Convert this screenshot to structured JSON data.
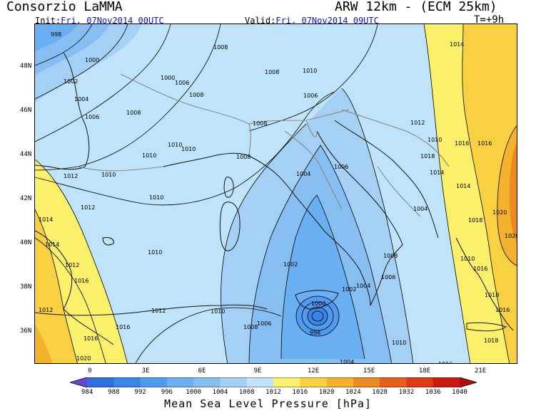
{
  "header": {
    "org": "Consorzio LaMMA",
    "model": "ARW 12km - (ECM 25km)",
    "init_label": "Init:",
    "init_value": "Fri, 07Nov2014 00UTC",
    "valid_label": "Valid:",
    "valid_value": "Fri, 07Nov2014 09UTC",
    "step": "T=+9h"
  },
  "axes": {
    "latitudes": [
      "48N",
      "46N",
      "44N",
      "42N",
      "40N",
      "38N",
      "36N"
    ],
    "longitudes": [
      "0",
      "3E",
      "6E",
      "9E",
      "12E",
      "15E",
      "18E",
      "21E"
    ]
  },
  "legend": {
    "title": "Mean Sea Level Pressure [hPa]",
    "ticks": [
      "984",
      "988",
      "992",
      "996",
      "1000",
      "1004",
      "1008",
      "1012",
      "1016",
      "1020",
      "1024",
      "1028",
      "1032",
      "1036",
      "1040"
    ],
    "colors": [
      "#6a44d2",
      "#2f6fe0",
      "#3a85e8",
      "#4f9bf0",
      "#6aaff2",
      "#86bef2",
      "#a4d0f6",
      "#bfe4fa",
      "#faf06a",
      "#f8d040",
      "#f3b12c",
      "#ec8a22",
      "#e5601a",
      "#dd3a16",
      "#cc1a12",
      "#b00c0c"
    ]
  },
  "isobar_labels": [
    "998",
    "1000",
    "1002",
    "1004",
    "1006",
    "1008",
    "1008",
    "1008",
    "1010",
    "1000",
    "1006",
    "1008",
    "1010",
    "1010",
    "1006",
    "1008",
    "1010",
    "1012",
    "1012",
    "1014",
    "1016",
    "1016",
    "1018",
    "1020",
    "1014",
    "1018",
    "1010",
    "1008",
    "1004",
    "1006",
    "1010",
    "1010",
    "1012",
    "1010",
    "1014",
    "1016",
    "1016",
    "1016",
    "1020",
    "1012",
    "1014",
    "1010",
    "1012",
    "1010",
    "1008",
    "1006",
    "1002",
    "1000",
    "998",
    "1002",
    "1004",
    "1006",
    "1008",
    "1004",
    "1016",
    "1018",
    "1020",
    "1016",
    "1018",
    "1004",
    "1014",
    "1012",
    "1016",
    "1010"
  ]
}
